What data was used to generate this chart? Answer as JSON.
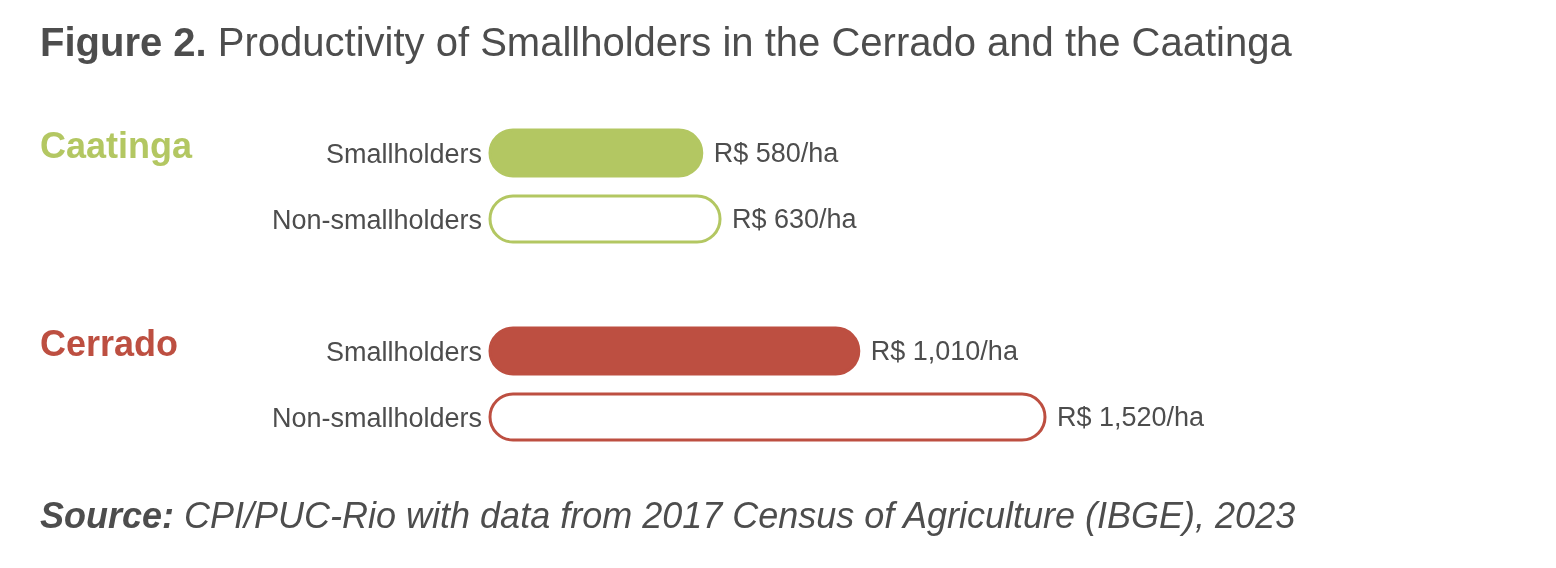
{
  "chart_data": {
    "type": "bar",
    "orientation": "horizontal",
    "title": "Figure 2. Productivity of Smallholders in the Cerrado and the Caatinga",
    "categories": [
      "Smallholders",
      "Non-smallholders",
      "Smallholders",
      "Non-smallholders"
    ],
    "series": [
      {
        "name": "Caatinga",
        "color": "#b3c762",
        "colors": [
          "#b3c762",
          "#ffffff",
          null,
          null
        ],
        "values": [
          580,
          630,
          null,
          null
        ],
        "value_labels": [
          "R$ 580/ha",
          "R$ 630/ha",
          null,
          null
        ]
      },
      {
        "name": "Cerrado",
        "color": "#bd4f41",
        "colors": [
          null,
          null,
          "#bd4f41",
          "#ffffff"
        ],
        "values": [
          null,
          null,
          1010,
          1520
        ],
        "value_labels": [
          null,
          null,
          "R$ 1,010/ha",
          "R$ 1,520/ha"
        ]
      }
    ],
    "annotations": [
      "Source: CPI/PUC-Rio with data from 2017 Census of Agriculture (IBGE), 2023"
    ]
  }
}
